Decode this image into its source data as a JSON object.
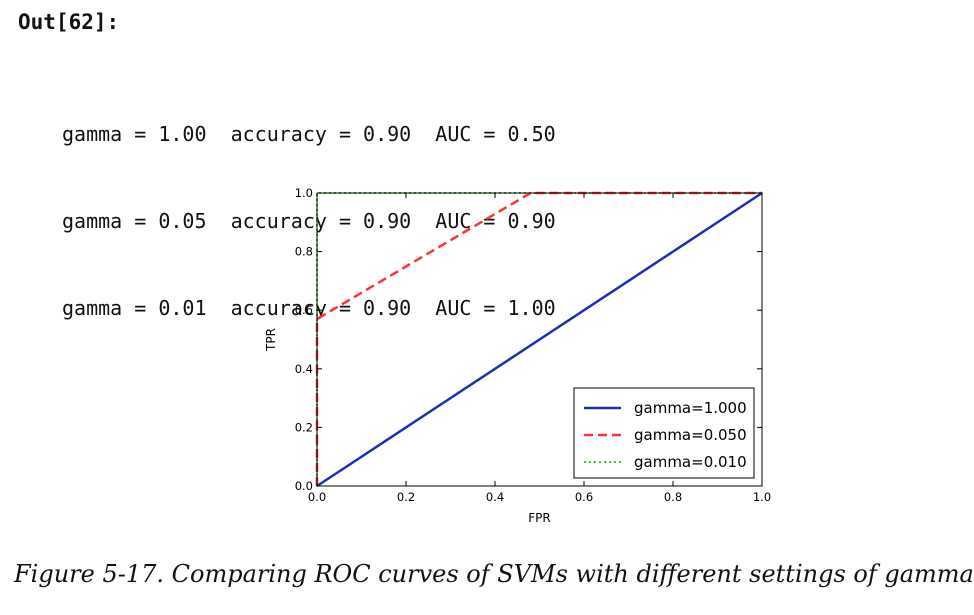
{
  "out_label": "Out[62]:",
  "output_lines": [
    "gamma = 1.00  accuracy = 0.90  AUC = 0.50",
    "gamma = 0.05  accuracy = 0.90  AUC = 0.90",
    "gamma = 0.01  accuracy = 0.90  AUC = 1.00"
  ],
  "caption": "Figure 5-17. Comparing ROC curves of SVMs with different settings of gamma",
  "chart_data": {
    "type": "line",
    "title": "",
    "xlabel": "FPR",
    "ylabel": "TPR",
    "xlim": [
      0.0,
      1.0
    ],
    "ylim": [
      0.0,
      1.0
    ],
    "xticks": [
      0.0,
      0.2,
      0.4,
      0.6,
      0.8,
      1.0
    ],
    "yticks": [
      0.0,
      0.2,
      0.4,
      0.6,
      0.8,
      1.0
    ],
    "xtick_labels": [
      "0.0",
      "0.2",
      "0.4",
      "0.6",
      "0.8",
      "1.0"
    ],
    "ytick_labels": [
      "0.0",
      "0.2",
      "0.4",
      "0.6",
      "0.8",
      "1.0"
    ],
    "grid": false,
    "legend_position": "lower-right",
    "series": [
      {
        "name": "gamma=1.000",
        "color": "#1f2fb4",
        "style": "solid",
        "x": [
          0.0,
          1.0
        ],
        "y": [
          0.0,
          1.0
        ]
      },
      {
        "name": "gamma=0.050",
        "color": "#ff3333",
        "style": "dashed",
        "x": [
          0.0,
          0.0,
          0.48,
          1.0
        ],
        "y": [
          0.0,
          0.57,
          1.0,
          1.0
        ]
      },
      {
        "name": "gamma=0.010",
        "color": "#33cc33",
        "style": "dotted",
        "x": [
          0.0,
          0.0,
          1.0
        ],
        "y": [
          0.0,
          1.0,
          1.0
        ]
      }
    ]
  }
}
